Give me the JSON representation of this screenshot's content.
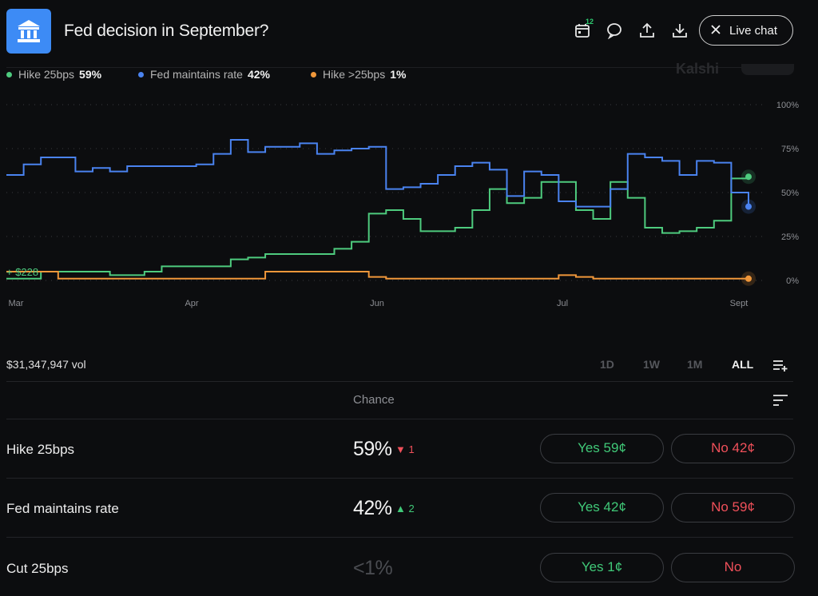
{
  "header": {
    "title": "Fed decision in September?",
    "calendar_badge": "12",
    "live_chat_label": "Live chat"
  },
  "legend": [
    {
      "name": "Hike 25bps",
      "value": "59%",
      "color": "#4ecb7e"
    },
    {
      "name": "Fed maintains rate",
      "value": "42%",
      "color": "#4a83f0"
    },
    {
      "name": "Hike >25bps",
      "value": "1%",
      "color": "#f0973a"
    }
  ],
  "watermark": "Kalshi",
  "chart_data": {
    "type": "line",
    "x_ticks": [
      "Mar",
      "Apr",
      "Jun",
      "Jul",
      "Sept"
    ],
    "y_ticks": [
      "100%",
      "75%",
      "50%",
      "25%",
      "0%"
    ],
    "ylim": [
      0,
      100
    ],
    "grid": true,
    "annotation": "+ $228",
    "series": [
      {
        "name": "Hike 25bps",
        "color": "#4ecb7e",
        "end_value": 59,
        "values": [
          1,
          1,
          5,
          5,
          5,
          5,
          3,
          3,
          5,
          8,
          8,
          8,
          8,
          12,
          13,
          15,
          15,
          15,
          15,
          18,
          22,
          38,
          40,
          35,
          28,
          28,
          30,
          40,
          52,
          44,
          47,
          56,
          56,
          40,
          35,
          56,
          47,
          30,
          27,
          28,
          30,
          34,
          58,
          59
        ]
      },
      {
        "name": "Fed maintains rate",
        "color": "#4a83f0",
        "end_value": 42,
        "values": [
          60,
          66,
          70,
          70,
          62,
          64,
          62,
          65,
          65,
          65,
          65,
          66,
          72,
          80,
          73,
          76,
          76,
          78,
          72,
          74,
          75,
          76,
          52,
          53,
          55,
          60,
          65,
          67,
          63,
          48,
          62,
          60,
          45,
          42,
          42,
          52,
          72,
          70,
          68,
          60,
          68,
          67,
          50,
          42
        ]
      },
      {
        "name": "Hike >25bps",
        "color": "#f0973a",
        "end_value": 1,
        "values": [
          5,
          5,
          5,
          1,
          1,
          1,
          1,
          1,
          1,
          1,
          1,
          1,
          1,
          1,
          1,
          5,
          5,
          5,
          5,
          5,
          5,
          2,
          1,
          1,
          1,
          1,
          1,
          1,
          1,
          1,
          1,
          1,
          3,
          2,
          1,
          1,
          1,
          1,
          1,
          1,
          1,
          1,
          1,
          1
        ]
      }
    ]
  },
  "volume": "$31,347,947 vol",
  "ranges": [
    {
      "label": "1D",
      "active": false
    },
    {
      "label": "1W",
      "active": false
    },
    {
      "label": "1M",
      "active": false
    },
    {
      "label": "ALL",
      "active": true
    }
  ],
  "table": {
    "chance_header": "Chance",
    "rows": [
      {
        "name": "Hike 25bps",
        "chance": "59%",
        "change": "▼ 1",
        "change_color": "#f0505a",
        "yes": "Yes 59¢",
        "no": "No 42¢"
      },
      {
        "name": "Fed maintains rate",
        "chance": "42%",
        "change": "▲ 2",
        "change_color": "#40c978",
        "yes": "Yes 42¢",
        "no": "No 59¢"
      },
      {
        "name": "Cut 25bps",
        "chance": "<1%",
        "change": "",
        "change_color": "#8d8f94",
        "yes": "Yes 1¢",
        "no": "No"
      }
    ]
  }
}
